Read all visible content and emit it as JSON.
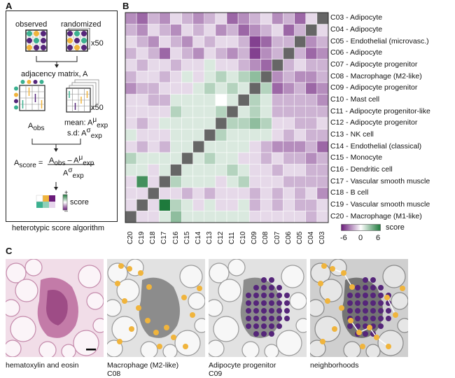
{
  "panels": {
    "a": "A",
    "b": "B",
    "c": "C"
  },
  "panelA": {
    "observed": "observed",
    "randomized": "randomized",
    "x50_top": "x50",
    "adjacency": "adjacency matrix, A",
    "x50_mid": "x50",
    "a_obs": "A",
    "a_obs_sub": "obs",
    "mean": "mean: A",
    "mean_sup": "μ",
    "mean_sub": "exp",
    "sd": "s.d: A",
    "sd_sup": "σ",
    "sd_sub": "exp",
    "ascore": "A",
    "ascore_sub": "score",
    "equals": "=",
    "num_a": "A",
    "num_a_sub": "obs",
    "num_minus": " – A",
    "num_sup": "μ",
    "num_sub": "exp",
    "den": "A",
    "den_sup": "σ",
    "den_sub": "exp",
    "plus": "+",
    "minus": "–",
    "score": "score",
    "caption": "heterotypic score algorithm"
  },
  "heatmap": {
    "rows": [
      {
        "code": "C03",
        "name": "Adipocyte"
      },
      {
        "code": "C04",
        "name": "Adipocyte"
      },
      {
        "code": "C05",
        "name": "Endothelial (microvasc.)"
      },
      {
        "code": "C06",
        "name": "Adipocyte"
      },
      {
        "code": "C07",
        "name": "Adipocyte progenitor"
      },
      {
        "code": "C08",
        "name": "Macrophage (M2-like)"
      },
      {
        "code": "C09",
        "name": "Adipocyte progenitor"
      },
      {
        "code": "C10",
        "name": "Mast cell"
      },
      {
        "code": "C11",
        "name": "Adipocyte progenitor-like"
      },
      {
        "code": "C12",
        "name": "Adipocyte progenitor"
      },
      {
        "code": "C13",
        "name": "NK cell"
      },
      {
        "code": "C14",
        "name": "Endothelial (classical)"
      },
      {
        "code": "C15",
        "name": "Monocyte"
      },
      {
        "code": "C16",
        "name": "Dendritic cell"
      },
      {
        "code": "C17",
        "name": "Vascular smooth muscle"
      },
      {
        "code": "C18",
        "name": "B cell"
      },
      {
        "code": "C19",
        "name": "Vascular smooth muscle"
      },
      {
        "code": "C20",
        "name": "Macrophage (M1-like)"
      }
    ],
    "cols": [
      "C20",
      "C19",
      "C18",
      "C17",
      "C16",
      "C15",
      "C14",
      "C13",
      "C12",
      "C11",
      "C10",
      "C09",
      "C08",
      "C07",
      "C06",
      "C05",
      "C04",
      "C03"
    ],
    "separator": " - ",
    "legend": {
      "label": "score",
      "ticks": [
        "-6",
        "0",
        "6"
      ]
    }
  },
  "chart_data": {
    "type": "heatmap",
    "x": [
      "C20",
      "C19",
      "C18",
      "C17",
      "C16",
      "C15",
      "C14",
      "C13",
      "C12",
      "C11",
      "C10",
      "C09",
      "C08",
      "C07",
      "C06",
      "C05",
      "C04",
      "C03"
    ],
    "y": [
      "C03",
      "C04",
      "C05",
      "C06",
      "C07",
      "C08",
      "C09",
      "C10",
      "C11",
      "C12",
      "C13",
      "C14",
      "C15",
      "C16",
      "C17",
      "C18",
      "C19",
      "C20"
    ],
    "zlim": [
      -6,
      6
    ],
    "colormap": {
      "low": "#6a1b7a",
      "mid": "#ffffff",
      "high": "#1e7a3c"
    },
    "diagonal_color": "#666666",
    "values": [
      [
        -3,
        -4,
        -2,
        -3,
        -1,
        -2,
        -3,
        -2,
        -1,
        -4,
        -3,
        -2,
        -1,
        -3,
        -2,
        -4,
        -1,
        0
      ],
      [
        -2,
        -3,
        -1,
        -2,
        -3,
        -1,
        -2,
        -1,
        -3,
        -2,
        -4,
        -3,
        -2,
        -1,
        -4,
        -2,
        0,
        -1
      ],
      [
        -1,
        -2,
        -3,
        -1,
        -2,
        -3,
        -1,
        -2,
        -1,
        -1,
        -2,
        -5,
        -4,
        -2,
        -2,
        0,
        -3,
        -2
      ],
      [
        -2,
        -1,
        -2,
        -4,
        -1,
        -2,
        -3,
        -1,
        -2,
        -3,
        -2,
        -5,
        -3,
        -2,
        0,
        -2,
        -4,
        -3
      ],
      [
        -1,
        -2,
        -1,
        -1,
        -2,
        -1,
        -1,
        1,
        -1,
        -1,
        -2,
        -3,
        -4,
        0,
        -2,
        -1,
        -2,
        -2
      ],
      [
        -2,
        -1,
        -1,
        -2,
        -1,
        1,
        -1,
        1,
        2,
        1,
        2,
        3,
        0,
        -3,
        -2,
        -3,
        -3,
        -2
      ],
      [
        -3,
        -2,
        -2,
        -1,
        -1,
        -1,
        1,
        2,
        1,
        2,
        1,
        0,
        2,
        -4,
        -3,
        -2,
        -4,
        -3
      ],
      [
        -1,
        -1,
        -2,
        -2,
        1,
        1,
        1,
        1,
        0,
        1,
        0,
        2,
        1,
        -2,
        -2,
        -2,
        -2,
        -3
      ],
      [
        -1,
        -1,
        -1,
        -1,
        2,
        1,
        1,
        1,
        2,
        0,
        1,
        2,
        1,
        -2,
        -2,
        -2,
        -2,
        -2
      ],
      [
        -1,
        -2,
        -1,
        1,
        1,
        1,
        1,
        1,
        0,
        2,
        2,
        3,
        2,
        -1,
        -1,
        -2,
        -2,
        -1
      ],
      [
        1,
        -1,
        -1,
        -1,
        1,
        1,
        1,
        0,
        2,
        1,
        1,
        1,
        1,
        -1,
        -2,
        -1,
        -2,
        -2
      ],
      [
        -1,
        -2,
        -1,
        -2,
        1,
        1,
        0,
        1,
        1,
        1,
        1,
        -1,
        -2,
        -3,
        -3,
        -3,
        -2,
        -4
      ],
      [
        2,
        1,
        1,
        1,
        1,
        0,
        1,
        2,
        1,
        1,
        -1,
        -1,
        -2,
        -1,
        -2,
        -2,
        -3,
        -2
      ],
      [
        1,
        1,
        -1,
        1,
        0,
        1,
        1,
        1,
        1,
        2,
        1,
        -1,
        -1,
        -2,
        -1,
        -1,
        -2,
        -2
      ],
      [
        -1,
        5,
        -1,
        0,
        2,
        1,
        1,
        1,
        -1,
        1,
        2,
        -1,
        -1,
        -1,
        -2,
        -2,
        -2,
        -2
      ],
      [
        -1,
        -1,
        0,
        -1,
        -1,
        -2,
        -1,
        -2,
        -1,
        -1,
        -1,
        -2,
        -1,
        -2,
        -1,
        -2,
        -1,
        -3
      ],
      [
        -1,
        0,
        -1,
        6,
        2,
        1,
        -1,
        1,
        -1,
        -1,
        1,
        -2,
        -1,
        -2,
        -1,
        -2,
        -2,
        -1
      ],
      [
        0,
        -1,
        -1,
        1,
        3,
        1,
        1,
        1,
        1,
        1,
        1,
        -1,
        -1,
        -1,
        -1,
        -1,
        -2,
        -1
      ]
    ]
  },
  "panelC": {
    "captions": [
      {
        "line1": "hematoxylin and eosin",
        "line2": ""
      },
      {
        "line1": "Macrophage (M2-like)",
        "line2": "C08"
      },
      {
        "line1": "Adipocyte progenitor",
        "line2": "C09"
      },
      {
        "line1": "neighborhoods",
        "line2": ""
      }
    ],
    "colors": {
      "orange": "#f0b43c",
      "purple": "#55257a"
    }
  }
}
